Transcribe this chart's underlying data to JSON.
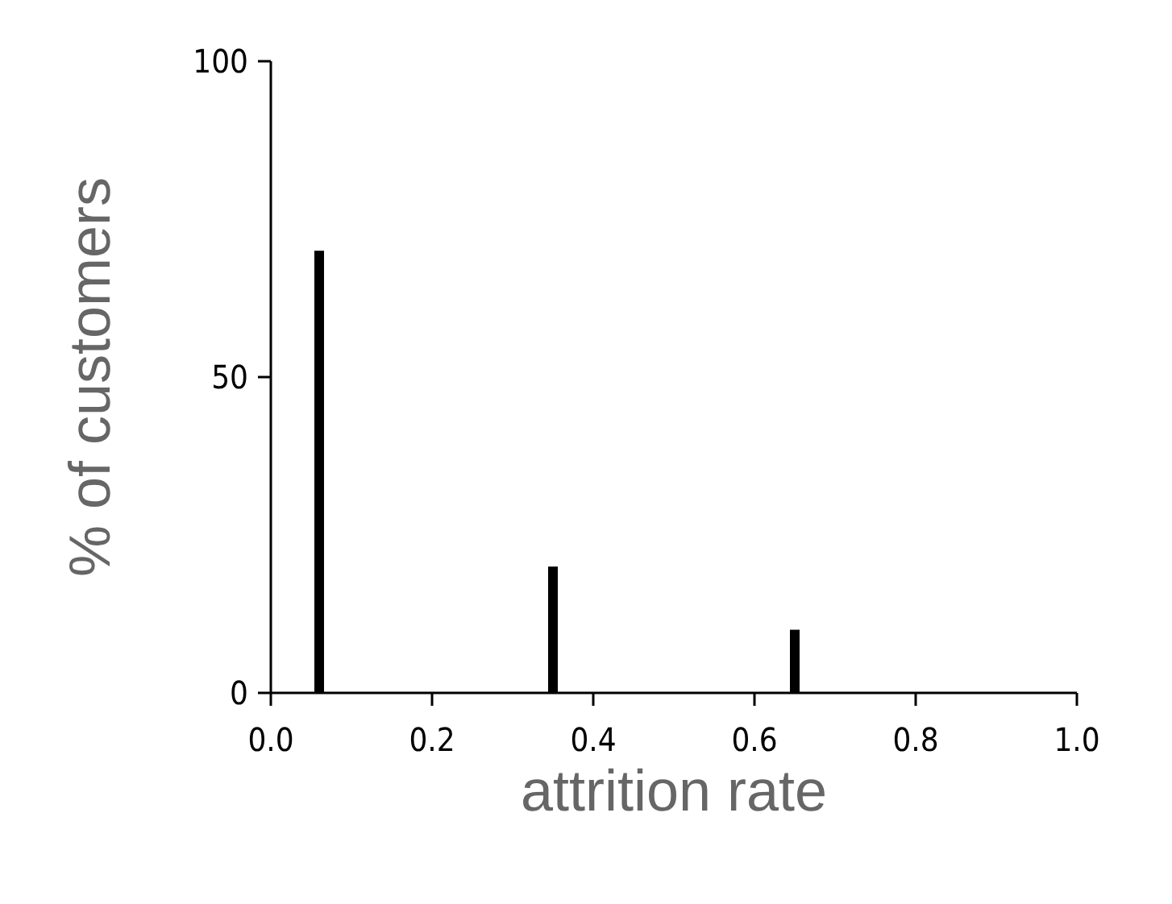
{
  "chart_data": {
    "type": "bar",
    "xlabel": "attrition rate",
    "ylabel": "% of customers",
    "x": [
      0.06,
      0.35,
      0.65
    ],
    "values": [
      70,
      20,
      10
    ],
    "color": "#000000",
    "xlim": [
      0,
      1
    ],
    "xticks": [
      {
        "value": 0,
        "label": "0.0"
      },
      {
        "value": 0.2,
        "label": "0.2"
      },
      {
        "value": 0.4,
        "label": "0.4"
      },
      {
        "value": 0.6,
        "label": "0.6"
      },
      {
        "value": 0.8,
        "label": "0.8"
      },
      {
        "value": 1,
        "label": "1.0"
      }
    ],
    "ylim": [
      0,
      100
    ],
    "yticks": [
      0,
      50,
      100
    ],
    "grid": false
  }
}
